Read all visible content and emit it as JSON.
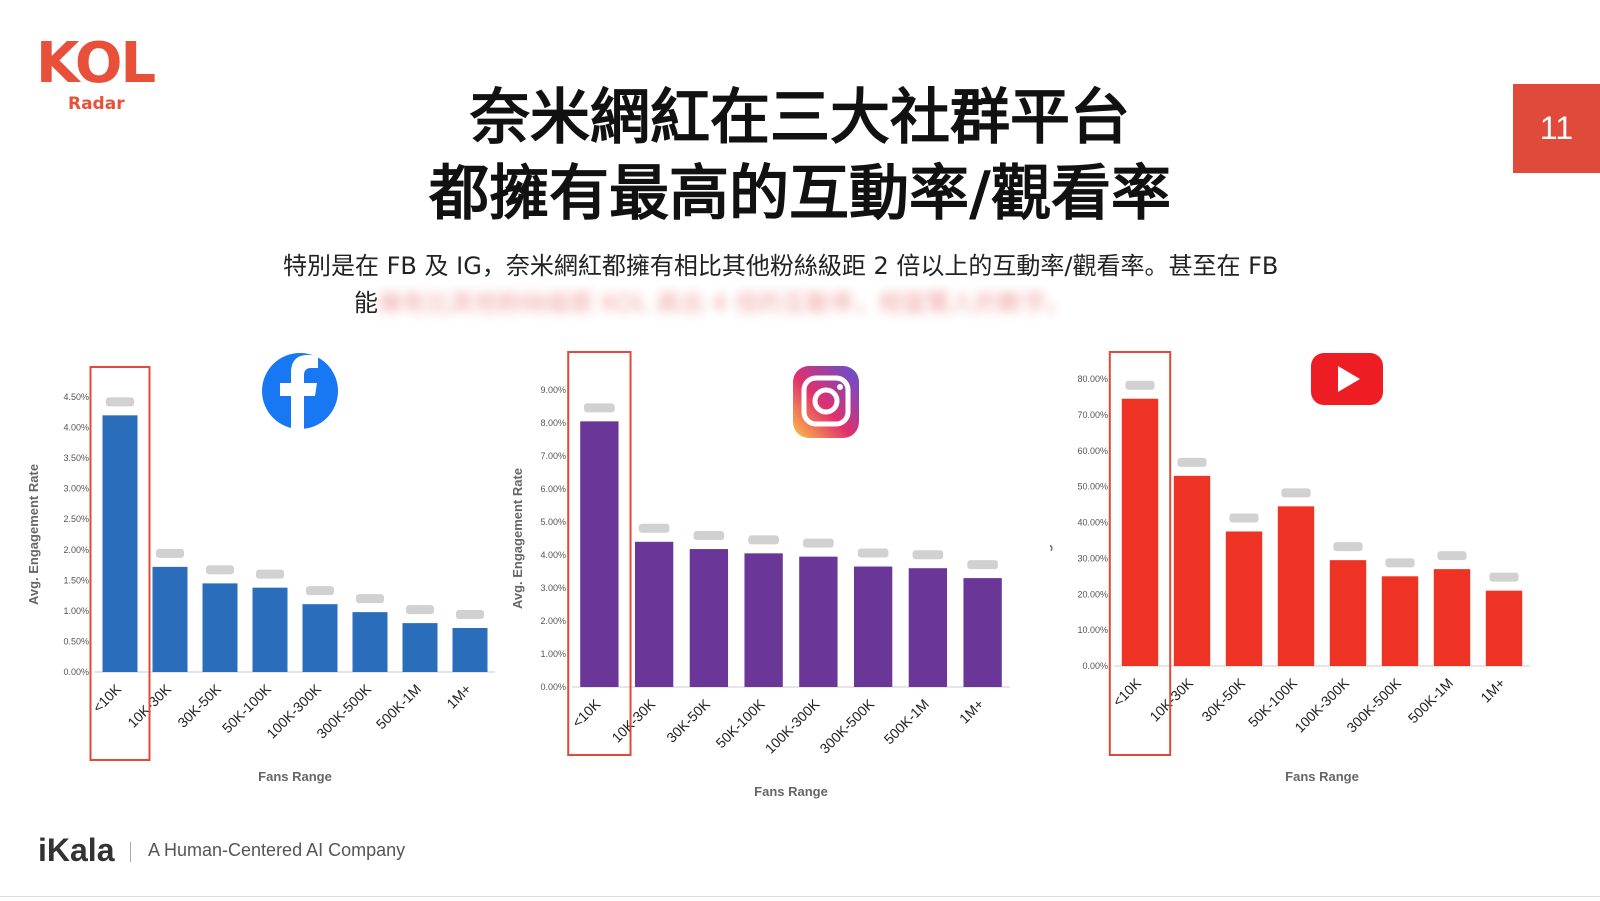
{
  "branding": {
    "logo_main": "KOL",
    "logo_sub": "Radar",
    "page_number": "11",
    "footer_logo": "iKala",
    "footer_tagline": "A Human-Centered AI Company",
    "accent_color": "#e04a3a"
  },
  "title": {
    "line1": "奈米網紅在三大社群平台",
    "line2": "都擁有最高的互動率/觀看率"
  },
  "subtitle": {
    "line1": "特別是在 FB 及 IG，奈米網紅都擁有相比其他粉絲級距 2 倍以上的互動率/觀看率。甚至在 FB",
    "line2_visible": "能",
    "line2_blurred": "擁有比其他粉絲級距 KOL 高出 4 倍的互動率，相當驚人的數字。"
  },
  "chart_data": [
    {
      "type": "bar",
      "platform": "facebook",
      "icon": "facebook-icon",
      "color": "#2a6ebb",
      "categories": [
        "<10K",
        "10K-30K",
        "30K-50K",
        "50K-100K",
        "100K-300K",
        "300K-500K",
        "500K-1M",
        "1M+"
      ],
      "values": [
        4.2,
        1.72,
        1.45,
        1.38,
        1.11,
        0.98,
        0.8,
        0.72
      ],
      "ylim": [
        0,
        4.5
      ],
      "yticks": [
        "0.00%",
        "0.50%",
        "1.00%",
        "1.50%",
        "2.00%",
        "2.50%",
        "3.00%",
        "3.50%",
        "4.00%",
        "4.50%"
      ],
      "ylabel": "Avg. Engagement Rate",
      "xlabel": "Fans Range",
      "highlight_category": "<10K",
      "data_labels_blurred": true
    },
    {
      "type": "bar",
      "platform": "instagram",
      "icon": "instagram-icon",
      "color": "#6a3698",
      "categories": [
        "<10K",
        "10K-30K",
        "30K-50K",
        "50K-100K",
        "100K-300K",
        "300K-500K",
        "500K-1M",
        "1M+"
      ],
      "values": [
        8.05,
        4.4,
        4.18,
        4.05,
        3.95,
        3.65,
        3.6,
        3.3
      ],
      "ylim": [
        0,
        9
      ],
      "yticks": [
        "0.00%",
        "1.00%",
        "2.00%",
        "3.00%",
        "4.00%",
        "5.00%",
        "6.00%",
        "7.00%",
        "8.00%",
        "9.00%"
      ],
      "ylabel": "Avg. Engagement Rate",
      "xlabel": "Fans Range",
      "highlight_category": "<10K",
      "data_labels_blurred": true
    },
    {
      "type": "bar",
      "platform": "youtube",
      "icon": "youtube-icon",
      "color": "#ee3224",
      "categories": [
        "<10K",
        "10K-30K",
        "30K-50K",
        "50K-100K",
        "100K-300K",
        "300K-500K",
        "500K-1M",
        "1M+"
      ],
      "values": [
        74.5,
        53.0,
        37.5,
        44.5,
        29.5,
        25.0,
        27.0,
        21.0
      ],
      "ylim": [
        0,
        80
      ],
      "yticks": [
        "0.00%",
        "10.00%",
        "20.00%",
        "30.00%",
        "40.00%",
        "50.00%",
        "60.00%",
        "70.00%",
        "80.00%"
      ],
      "ylabel": "Avg. view Rate",
      "xlabel": "Fans Range",
      "highlight_category": "<10K",
      "data_labels_blurred": true
    }
  ]
}
